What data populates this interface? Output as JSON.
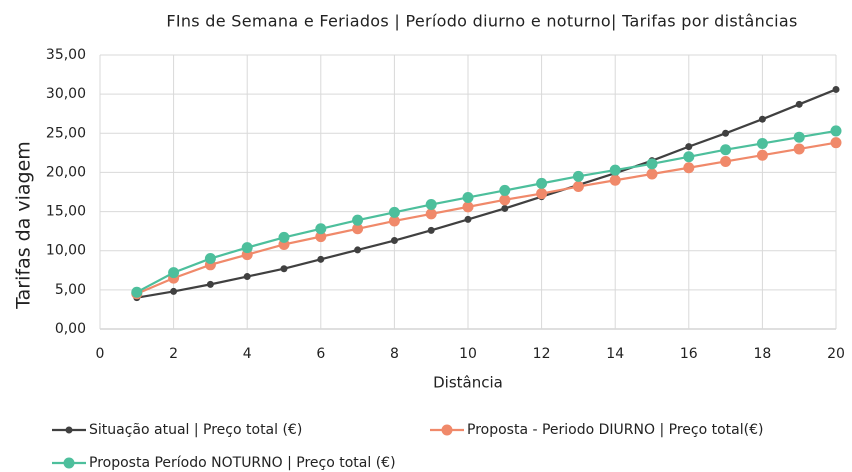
{
  "chart_data": {
    "type": "line",
    "title": "FIns de Semana e Feriados | Período diurno e noturno| Tarifas por distâncias",
    "x_label": "Distância",
    "y_label": "Tarifas da viagem",
    "x": [
      1,
      2,
      3,
      4,
      5,
      6,
      7,
      8,
      9,
      10,
      11,
      12,
      13,
      14,
      15,
      16,
      17,
      18,
      19,
      20
    ],
    "series": [
      {
        "name": "Situação atual | Preço total (€)",
        "color": "#404040",
        "values": [
          4.0,
          4.8,
          5.7,
          6.7,
          7.7,
          8.9,
          10.1,
          11.3,
          12.6,
          14.0,
          15.4,
          16.9,
          18.4,
          19.9,
          21.5,
          23.3,
          25.0,
          26.8,
          28.7,
          30.6
        ]
      },
      {
        "name": "Proposta - Periodo DIURNO | Preço total(€)",
        "color": "#f0896a",
        "values": [
          4.5,
          6.5,
          8.2,
          9.5,
          10.8,
          11.8,
          12.8,
          13.8,
          14.7,
          15.6,
          16.5,
          17.3,
          18.2,
          19.0,
          19.8,
          20.6,
          21.4,
          22.2,
          23.0,
          23.8
        ]
      },
      {
        "name": "Proposta Período NOTURNO | Preço total (€)",
        "color": "#4dbf9c",
        "values": [
          4.7,
          7.2,
          9.0,
          10.4,
          11.7,
          12.8,
          13.9,
          14.9,
          15.9,
          16.8,
          17.7,
          18.6,
          19.5,
          20.3,
          21.1,
          22.0,
          22.9,
          23.7,
          24.5,
          25.3
        ]
      }
    ],
    "xlim": [
      0,
      20
    ],
    "xticks": [
      0,
      2,
      4,
      6,
      8,
      10,
      12,
      14,
      16,
      18,
      20
    ],
    "ylim": [
      0,
      35
    ],
    "yticks": [
      {
        "value": 0,
        "label": "0,00"
      },
      {
        "value": 5,
        "label": "5,00"
      },
      {
        "value": 10,
        "label": "10,00"
      },
      {
        "value": 15,
        "label": "15,00"
      },
      {
        "value": 20,
        "label": "20,00"
      },
      {
        "value": 25,
        "label": "25,00"
      },
      {
        "value": 30,
        "label": "30,00"
      },
      {
        "value": 35,
        "label": "35,00"
      }
    ],
    "grid": true,
    "legend": "bottom"
  }
}
